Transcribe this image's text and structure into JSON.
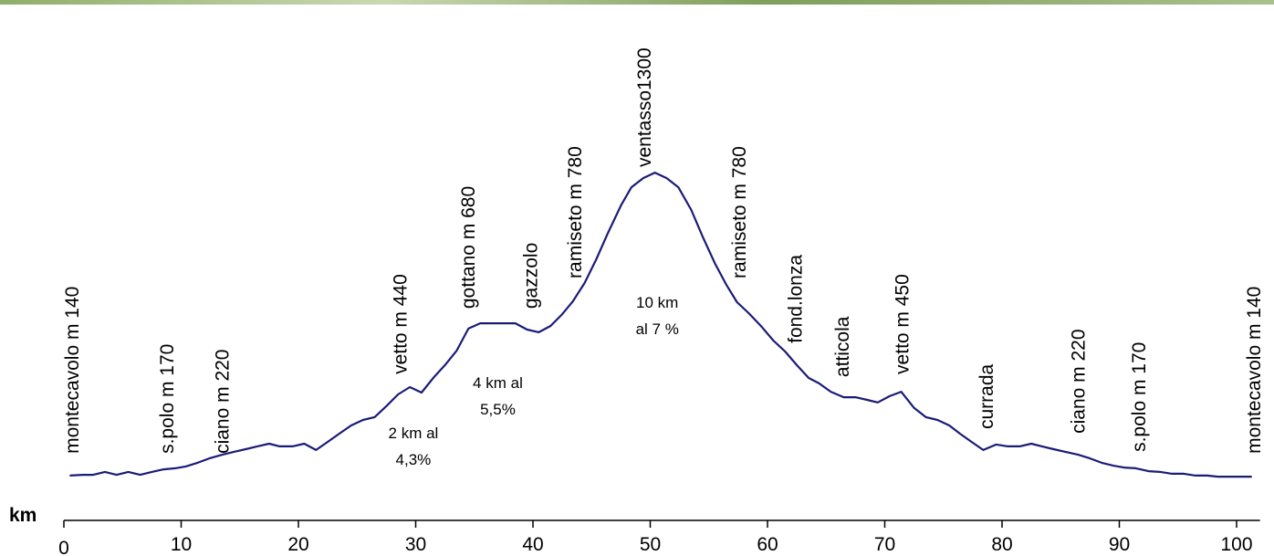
{
  "chart_data": {
    "type": "line",
    "x_label": "km",
    "x": [
      0.5,
      1.6,
      2.5,
      3.5,
      4.5,
      5.5,
      6.5,
      7.5,
      8.5,
      9.5,
      10.4,
      11.4,
      12.4,
      13.5,
      14.5,
      15.5,
      16.5,
      17.5,
      18.4,
      19.5,
      20.5,
      21.5,
      22.5,
      23.5,
      24.5,
      25.5,
      26.5,
      27.5,
      28.5,
      29.5,
      30.5,
      31.5,
      32.5,
      33.5,
      34.5,
      35.5,
      36.5,
      37.5,
      38.5,
      39.5,
      40.5,
      41.5,
      42.5,
      43.4,
      44.4,
      45.4,
      46.4,
      47.5,
      48.4,
      49.4,
      50.4,
      51.4,
      52.4,
      53.5,
      54.5,
      55.5,
      56.5,
      57.4,
      58.4,
      59.5,
      60.5,
      61.5,
      62.5,
      63.5,
      64.4,
      65.4,
      66.5,
      67.5,
      68.5,
      69.4,
      70.4,
      71.4,
      72.5,
      73.5,
      74.5,
      75.5,
      76.4,
      77.4,
      78.4,
      79.5,
      80.5,
      81.5,
      82.5,
      83.4,
      84.4,
      85.4,
      86.5,
      87.5,
      88.5,
      89.5,
      90.4,
      91.4,
      92.5,
      93.5,
      94.5,
      95.5,
      96.5,
      97.5,
      98.4,
      99.5,
      100.5,
      101.3
    ],
    "values": [
      140,
      143,
      143,
      154,
      143,
      154,
      143,
      154,
      164,
      168,
      175,
      189,
      206,
      220,
      231,
      241,
      252,
      262,
      252,
      252,
      262,
      238,
      269,
      301,
      332,
      353,
      364,
      406,
      451,
      479,
      458,
      514,
      563,
      619,
      703,
      723,
      723,
      723,
      723,
      699,
      689,
      713,
      758,
      807,
      877,
      968,
      1069,
      1174,
      1244,
      1279,
      1300,
      1279,
      1244,
      1157,
      1052,
      954,
      870,
      804,
      762,
      710,
      657,
      615,
      563,
      514,
      493,
      461,
      440,
      440,
      430,
      420,
      444,
      461,
      399,
      364,
      353,
      332,
      301,
      269,
      238,
      259,
      252,
      252,
      262,
      252,
      241,
      231,
      220,
      206,
      189,
      178,
      171,
      168,
      157,
      154,
      147,
      147,
      140,
      140,
      136,
      136,
      136,
      136
    ],
    "color": "#1b1b78",
    "xlim": [
      0,
      102
    ],
    "ylim": [
      0,
      1800
    ],
    "xticks": [
      0,
      10,
      20,
      30,
      40,
      50,
      60,
      70,
      80,
      90,
      100
    ],
    "annotations": [
      {
        "text": "montecavolo m 140",
        "x": 0.8,
        "y": 224
      },
      {
        "text": "s.polo m 170",
        "x": 8.9,
        "y": 224
      },
      {
        "text": "ciano m 220",
        "x": 13.6,
        "y": 224
      },
      {
        "text": "vetto m 440",
        "x": 28.8,
        "y": 528
      },
      {
        "text": "gottano m 680",
        "x": 34.6,
        "y": 779
      },
      {
        "text": "gazzolo",
        "x": 39.9,
        "y": 779
      },
      {
        "text": "ramiseto m 780",
        "x": 43.7,
        "y": 895
      },
      {
        "text": "ventasso1300",
        "x": 49.6,
        "y": 1321
      },
      {
        "text": "ramiseto m 780",
        "x": 57.7,
        "y": 895
      },
      {
        "text": "fond.lonza",
        "x": 62.5,
        "y": 647
      },
      {
        "text": "atticola",
        "x": 66.5,
        "y": 517
      },
      {
        "text": "vetto m 450",
        "x": 71.6,
        "y": 528
      },
      {
        "text": "currada",
        "x": 78.8,
        "y": 318
      },
      {
        "text": "ciano m 220",
        "x": 86.6,
        "y": 301
      },
      {
        "text": "s.polo m 170",
        "x": 91.8,
        "y": 231
      },
      {
        "text": "montecavolo m 140",
        "x": 101.6,
        "y": 224
      }
    ],
    "notes": [
      {
        "lines": [
          "2 km al",
          "4,3%"
        ],
        "x": 29.8,
        "y": 283
      },
      {
        "lines": [
          "4  km al",
          "5,5%"
        ],
        "x": 37.0,
        "y": 475
      },
      {
        "lines": [
          "10  km",
          "al 7 %"
        ],
        "x": 50.6,
        "y": 783
      }
    ]
  }
}
